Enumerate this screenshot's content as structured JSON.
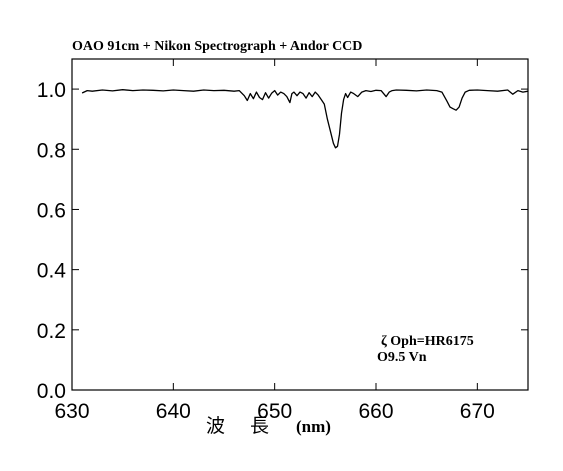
{
  "chart_data": {
    "type": "line",
    "title": "OAO 91cm + Nikon Spectrograph + Andor CCD",
    "xlabel_chars": [
      "波",
      "長"
    ],
    "xlabel_unit": "(nm)",
    "ylabel": "",
    "xlim": [
      630,
      675
    ],
    "ylim": [
      0.0,
      1.0
    ],
    "x_ticks": [
      630,
      640,
      650,
      660,
      670
    ],
    "x_tick_labels": [
      "630",
      "640",
      "650",
      "660",
      "670"
    ],
    "y_ticks": [
      0.0,
      0.2,
      0.4,
      0.6,
      0.8,
      1.0
    ],
    "y_tick_labels": [
      "0.0",
      "0.2",
      "0.4",
      "0.6",
      "0.8",
      "1.0"
    ],
    "annotations": [
      "ζ Oph=HR6175",
      "O9.5 Vn"
    ],
    "grid": false,
    "series": [
      {
        "color": "#000000",
        "x": [
          631.0,
          631.5,
          632.0,
          633.0,
          634.0,
          635.0,
          636.0,
          637.0,
          638.0,
          639.0,
          640.0,
          641.0,
          642.0,
          643.0,
          644.0,
          645.0,
          646.0,
          646.5,
          647.0,
          647.3,
          647.6,
          647.9,
          648.2,
          648.5,
          648.8,
          649.1,
          649.4,
          649.7,
          650.0,
          650.3,
          650.6,
          650.9,
          651.2,
          651.5,
          651.7,
          651.9,
          652.2,
          652.5,
          652.8,
          653.1,
          653.4,
          653.7,
          654.0,
          654.3,
          654.6,
          654.9,
          655.2,
          655.5,
          655.8,
          656.0,
          656.2,
          656.4,
          656.6,
          656.8,
          657.0,
          657.2,
          657.5,
          657.8,
          658.2,
          658.6,
          659.0,
          659.5,
          660.0,
          660.5,
          661.0,
          661.3,
          661.6,
          662.0,
          663.0,
          664.0,
          665.0,
          666.0,
          666.5,
          667.0,
          667.3,
          667.6,
          667.9,
          668.2,
          668.5,
          668.8,
          669.2,
          670.0,
          671.0,
          672.0,
          673.0,
          673.5,
          674.0,
          674.5,
          675.0
        ],
        "y": [
          0.987,
          0.995,
          0.993,
          0.997,
          0.994,
          0.998,
          0.995,
          0.997,
          0.996,
          0.994,
          0.997,
          0.995,
          0.993,
          0.997,
          0.995,
          0.996,
          0.993,
          0.995,
          0.978,
          0.962,
          0.985,
          0.968,
          0.99,
          0.972,
          0.965,
          0.988,
          0.97,
          0.986,
          0.995,
          0.98,
          0.99,
          0.985,
          0.975,
          0.955,
          0.985,
          0.99,
          0.978,
          0.99,
          0.985,
          0.97,
          0.988,
          0.975,
          0.99,
          0.98,
          0.965,
          0.95,
          0.9,
          0.86,
          0.82,
          0.805,
          0.81,
          0.85,
          0.92,
          0.965,
          0.985,
          0.972,
          0.99,
          0.985,
          0.975,
          0.99,
          0.995,
          0.992,
          0.996,
          0.995,
          0.975,
          0.99,
          0.995,
          0.997,
          0.996,
          0.994,
          0.997,
          0.995,
          0.99,
          0.96,
          0.94,
          0.935,
          0.93,
          0.94,
          0.97,
          0.99,
          0.996,
          0.997,
          0.995,
          0.993,
          0.997,
          0.983,
          0.995,
          0.99,
          0.993
        ]
      }
    ]
  }
}
